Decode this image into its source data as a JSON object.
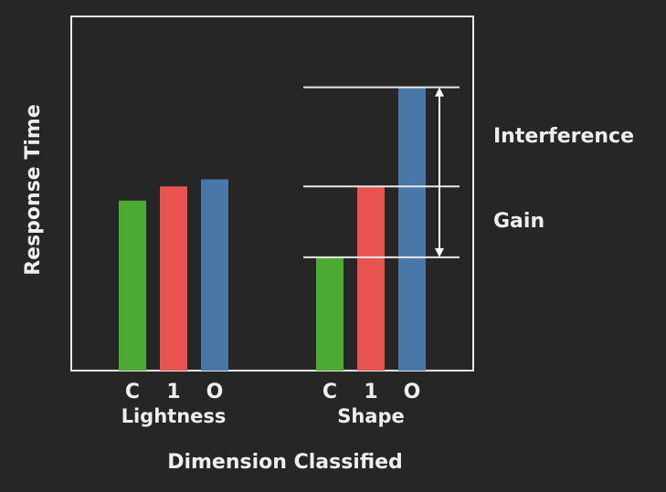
{
  "chart_data": {
    "type": "bar",
    "categories": [
      "Lightness",
      "Shape"
    ],
    "series": [
      {
        "name": "C",
        "color": "#4daa35",
        "values": [
          48,
          32
        ]
      },
      {
        "name": "1",
        "color": "#e9534f",
        "values": [
          52,
          52
        ]
      },
      {
        "name": "O",
        "color": "#4a78a6",
        "values": [
          54,
          80
        ]
      }
    ],
    "ylim": [
      0,
      100
    ],
    "y_label": "Response Time",
    "x_label": "Dimension Classified",
    "annotations": [
      "Interference",
      "Gain"
    ]
  }
}
